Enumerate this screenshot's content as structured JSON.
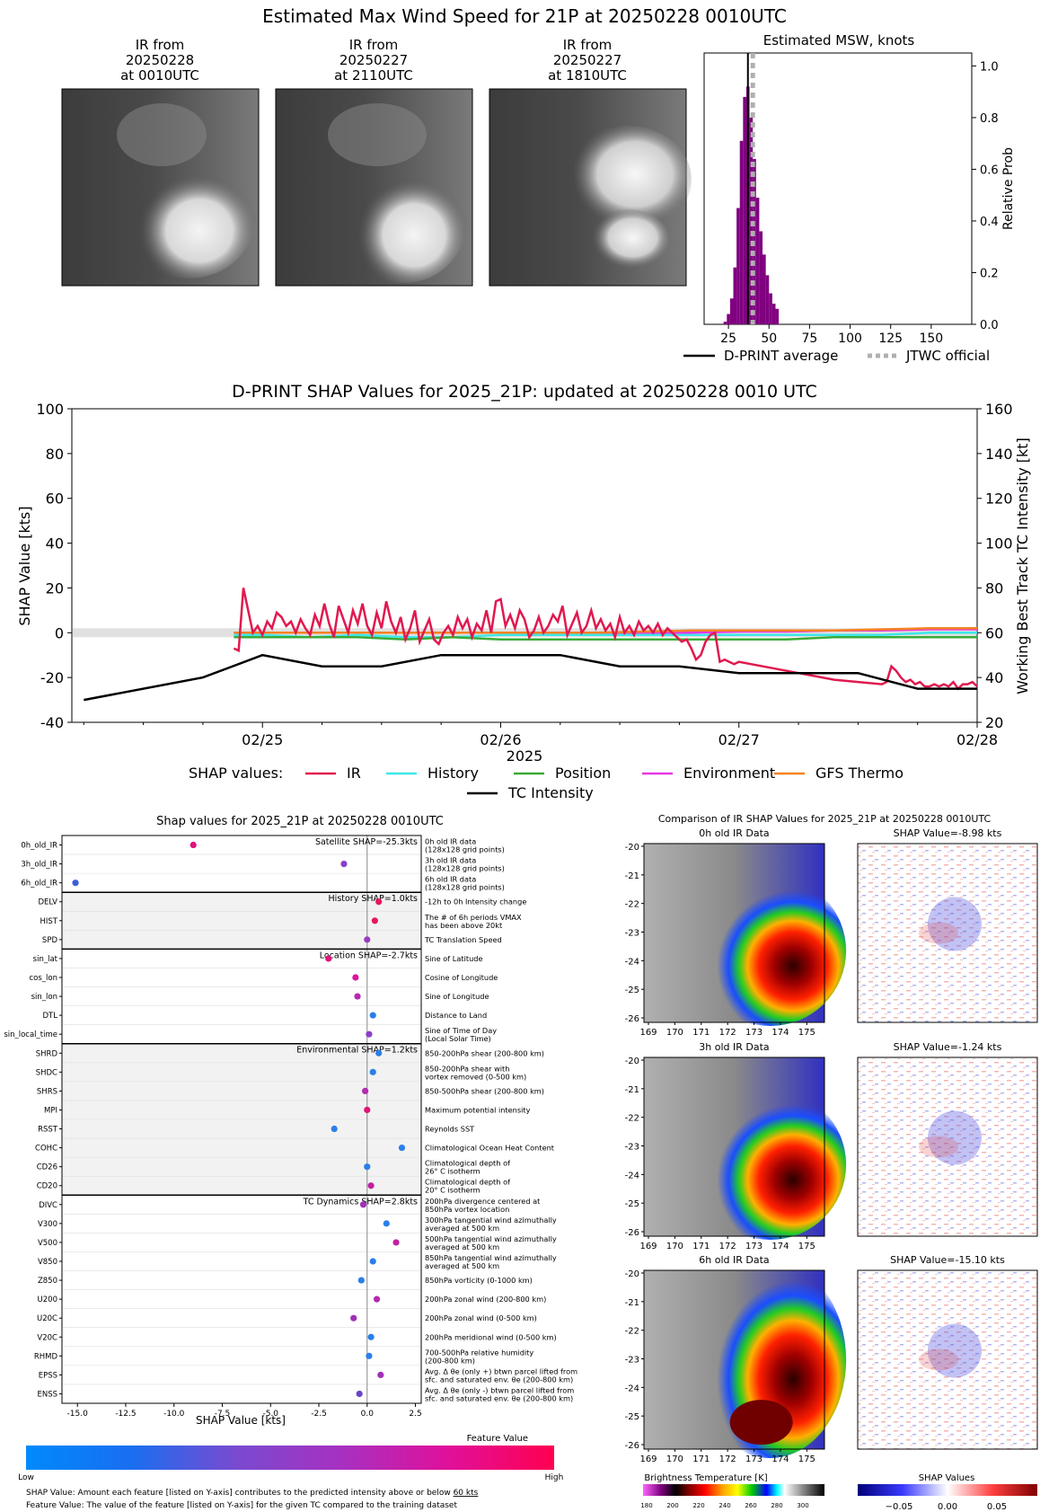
{
  "title": "Estimated Max Wind Speed for 21P at 20250228 0010UTC",
  "ir_thumbs": [
    {
      "line1": "IR from",
      "line2": "20250228",
      "line3": "at 0010UTC"
    },
    {
      "line1": "IR from",
      "line2": "20250227",
      "line3": "at 2110UTC"
    },
    {
      "line1": "IR from",
      "line2": "20250227",
      "line3": "at 1810UTC"
    }
  ],
  "msw": {
    "title": "Estimated MSW, knots",
    "ylabel": "Relative Prob",
    "xticks": [
      "25",
      "50",
      "75",
      "100",
      "125",
      "150"
    ],
    "yticks": [
      "0.0",
      "0.2",
      "0.4",
      "0.6",
      "0.8",
      "1.0"
    ],
    "legend_dprint": "D-PRINT average",
    "legend_jtwc": "JTWC official",
    "bar_color": "#800080",
    "chart_data": {
      "type": "bar",
      "xlim": [
        10,
        175
      ],
      "ylim": [
        0,
        1.05
      ],
      "bin_width": 2,
      "bins": [
        23,
        25,
        27,
        29,
        31,
        33,
        35,
        37,
        39,
        41,
        43,
        45,
        47,
        49,
        51,
        53,
        55
      ],
      "values": [
        0.01,
        0.04,
        0.1,
        0.22,
        0.45,
        0.71,
        0.88,
        0.92,
        0.8,
        0.64,
        0.49,
        0.36,
        0.27,
        0.19,
        0.12,
        0.08,
        0.06
      ],
      "dprint_avg": 37,
      "jtwc_official": 40
    }
  },
  "shap_ts": {
    "title": "D-PRINT SHAP Values for 2025_21P: updated at 20250228 0010 UTC",
    "ylabel": "SHAP Value [kts]",
    "y2label": "Working Best Track TC Intensity [kt]",
    "xlabel": "2025",
    "yticks": [
      "-40",
      "-20",
      "0",
      "20",
      "40",
      "60",
      "80",
      "100"
    ],
    "y2ticks": [
      "20",
      "40",
      "60",
      "80",
      "100",
      "120",
      "140",
      "160"
    ],
    "xticks": [
      "02/25",
      "02/26",
      "02/27",
      "02/28"
    ],
    "legend_title": "SHAP values:",
    "legend": [
      {
        "name": "IR",
        "color": "#e0194f"
      },
      {
        "name": "History",
        "color": "#3de8e8"
      },
      {
        "name": "Position",
        "color": "#3aaa35"
      },
      {
        "name": "Environment",
        "color": "#e637e6"
      },
      {
        "name": "GFS Thermo",
        "color": "#f58223"
      },
      {
        "name": "TC Intensity",
        "color": "#000000"
      }
    ],
    "chart_data": {
      "type": "line",
      "ylim": [
        -40,
        100
      ],
      "y2lim": [
        20,
        160
      ],
      "xlim_days": [
        24.2,
        28.0
      ],
      "intensity": {
        "t": [
          24.25,
          24.75,
          25.0,
          25.25,
          25.5,
          25.75,
          26.0,
          26.25,
          26.5,
          26.75,
          27.0,
          27.25,
          27.5,
          27.75,
          28.0
        ],
        "v": [
          30,
          40,
          50,
          45,
          45,
          50,
          50,
          50,
          45,
          45,
          42,
          42,
          42,
          35,
          35
        ]
      },
      "ir": {
        "t": [
          24.88,
          24.9,
          24.92,
          24.94,
          24.96,
          24.98,
          25.0,
          25.02,
          25.04,
          25.06,
          25.08,
          25.1,
          25.12,
          25.14,
          25.16,
          25.18,
          25.2,
          25.22,
          25.24,
          25.26,
          25.28,
          25.3,
          25.32,
          25.34,
          25.36,
          25.38,
          25.4,
          25.42,
          25.44,
          25.46,
          25.48,
          25.5,
          25.52,
          25.54,
          25.56,
          25.58,
          25.6,
          25.62,
          25.64,
          25.66,
          25.68,
          25.7,
          25.72,
          25.74,
          25.76,
          25.78,
          25.8,
          25.82,
          25.84,
          25.86,
          25.88,
          25.9,
          25.92,
          25.94,
          25.96,
          25.98,
          26.0,
          26.02,
          26.04,
          26.06,
          26.08,
          26.1,
          26.12,
          26.14,
          26.16,
          26.18,
          26.2,
          26.22,
          26.24,
          26.26,
          26.28,
          26.3,
          26.32,
          26.34,
          26.36,
          26.38,
          26.4,
          26.42,
          26.44,
          26.46,
          26.48,
          26.5,
          26.52,
          26.54,
          26.56,
          26.58,
          26.6,
          26.62,
          26.64,
          26.66,
          26.68,
          26.7,
          26.72,
          26.74,
          26.76,
          26.78,
          26.8,
          26.82,
          26.84,
          26.86,
          26.88,
          26.9,
          26.92,
          26.94,
          26.96,
          26.98,
          27.0,
          27.2,
          27.4,
          27.6,
          27.62,
          27.64,
          27.66,
          27.68,
          27.7,
          27.72,
          27.74,
          27.76,
          27.78,
          27.8,
          27.82,
          27.84,
          27.86,
          27.88,
          27.9,
          27.92,
          27.94,
          27.96,
          27.98,
          28.0
        ],
        "v": [
          -7,
          -8,
          20,
          10,
          0,
          3,
          -1,
          5,
          2,
          9,
          7,
          3,
          5,
          0,
          6,
          2,
          -1,
          8,
          3,
          13,
          4,
          -2,
          12,
          6,
          0,
          10,
          4,
          13,
          3,
          -1,
          9,
          2,
          14,
          5,
          0,
          7,
          -3,
          2,
          10,
          -4,
          1,
          6,
          -3,
          -5,
          0,
          3,
          -1,
          7,
          2,
          6,
          -2,
          4,
          1,
          10,
          0,
          14,
          15,
          3,
          8,
          2,
          10,
          6,
          -2,
          1,
          7,
          0,
          3,
          8,
          5,
          12,
          -1,
          4,
          9,
          0,
          3,
          10,
          2,
          6,
          1,
          4,
          -2,
          7,
          0,
          3,
          -1,
          5,
          1,
          3,
          0,
          4,
          -1,
          2,
          0,
          -2,
          -4,
          -3,
          -7,
          -12,
          -10,
          -4,
          -1,
          0,
          -13,
          -12,
          -13,
          -14,
          -13,
          -17,
          -21,
          -23,
          -22,
          -15,
          -17,
          -20,
          -22,
          -21,
          -23,
          -22,
          -24,
          -24,
          -23,
          -24,
          -23,
          -24,
          -22,
          -25,
          -23,
          -23,
          -22,
          -24,
          -25
        ]
      },
      "history": {
        "t": [
          24.88,
          25.0,
          25.2,
          25.4,
          25.6,
          25.8,
          26.0,
          26.2,
          26.4,
          26.6,
          26.8,
          27.0,
          27.2,
          27.4,
          27.6,
          27.8,
          28.0
        ],
        "v": [
          -1,
          -1,
          -2,
          -1,
          -2,
          -2,
          -1,
          -1,
          -1,
          -1,
          -1,
          -1,
          -1,
          -1,
          -1,
          0,
          0
        ]
      },
      "position": {
        "t": [
          24.88,
          25.0,
          25.2,
          25.4,
          25.6,
          25.8,
          26.0,
          26.2,
          26.4,
          26.6,
          26.8,
          27.0,
          27.2,
          27.4,
          27.6,
          27.8,
          28.0
        ],
        "v": [
          -2,
          -2,
          -2,
          -2,
          -3,
          -2,
          -3,
          -3,
          -3,
          -3,
          -3,
          -3,
          -3,
          -2,
          -2,
          -2,
          -2
        ]
      },
      "environment": {
        "t": [
          24.88,
          25.0,
          25.2,
          25.4,
          25.6,
          25.8,
          26.0,
          26.2,
          26.4,
          26.6,
          26.8,
          27.0,
          27.2,
          27.4,
          27.6,
          27.8,
          28.0
        ],
        "v": [
          0,
          0,
          0,
          0,
          0,
          0,
          0,
          0,
          0,
          0,
          0,
          0.5,
          0.5,
          1,
          1,
          1.5,
          1.5
        ]
      },
      "gfs": {
        "t": [
          24.88,
          25.0,
          25.2,
          25.4,
          25.6,
          25.8,
          26.0,
          26.2,
          26.4,
          26.6,
          26.8,
          27.0,
          27.2,
          27.4,
          27.6,
          27.8,
          28.0
        ],
        "v": [
          0,
          0,
          0,
          0,
          0,
          0,
          0,
          0,
          0,
          0.5,
          1,
          1,
          1,
          1,
          1.5,
          2,
          2
        ]
      }
    }
  },
  "shap_features": {
    "title": "Shap values for 2025_21P at 20250228 0010UTC",
    "xlabel": "SHAP Value [kts]",
    "xticks": [
      "-15.0",
      "-12.5",
      "-10.0",
      "-7.5",
      "-5.0",
      "-2.5",
      "0.0",
      "2.5"
    ],
    "groups": [
      {
        "label": "Satellite SHAP=-25.3kts",
        "start": 0,
        "end": 3,
        "shaded": false
      },
      {
        "label": "History SHAP=1.0kts",
        "start": 3,
        "end": 6,
        "shaded": true
      },
      {
        "label": "Location SHAP=-2.7kts",
        "start": 6,
        "end": 11,
        "shaded": false
      },
      {
        "label": "Environmental SHAP=1.2kts",
        "start": 11,
        "end": 19,
        "shaded": true
      },
      {
        "label": "TC Dynamics SHAP=2.8kts",
        "start": 19,
        "end": 30,
        "shaded": false
      }
    ],
    "chart_data": {
      "type": "scatter",
      "xlim": [
        -15.8,
        2.8
      ],
      "features": [
        {
          "name": "0h_old_IR",
          "desc1": "0h old IR data",
          "desc2": "(128x128 grid points)",
          "value": -9.0,
          "color": "#e0147a"
        },
        {
          "name": "3h_old_IR",
          "desc1": "3h old IR data",
          "desc2": "(128x128 grid points)",
          "value": -1.2,
          "color": "#8a3fc8"
        },
        {
          "name": "6h_old_IR",
          "desc1": "6h old IR data",
          "desc2": "(128x128 grid points)",
          "value": -15.1,
          "color": "#3a5ce0"
        },
        {
          "name": "DELV",
          "desc1": "-12h to 0h Intensity change",
          "desc2": "",
          "value": 0.6,
          "color": "#e8175a"
        },
        {
          "name": "HIST",
          "desc1": "The # of 6h periods VMAX",
          "desc2": "has been above 20kt",
          "value": 0.4,
          "color": "#e8175a"
        },
        {
          "name": "SPD",
          "desc1": "TC Translation Speed",
          "desc2": "",
          "value": 0.0,
          "color": "#9a3cc0"
        },
        {
          "name": "sin_lat",
          "desc1": "Sine of Latitude",
          "desc2": "",
          "value": -2.0,
          "color": "#e0147a"
        },
        {
          "name": "cos_lon",
          "desc1": "Cosine of Longitude",
          "desc2": "",
          "value": -0.6,
          "color": "#d815a0"
        },
        {
          "name": "sin_lon",
          "desc1": "Sine of Longitude",
          "desc2": "",
          "value": -0.5,
          "color": "#b42ab0"
        },
        {
          "name": "DTL",
          "desc1": "Distance to Land",
          "desc2": "",
          "value": 0.3,
          "color": "#2a7fe8"
        },
        {
          "name": "sin_local_time",
          "desc1": "Sine of Time of Day",
          "desc2": "(Local Solar Time)",
          "value": 0.1,
          "color": "#8a3fc8"
        },
        {
          "name": "SHRD",
          "desc1": "850-200hPa shear (200-800 km)",
          "desc2": "",
          "value": 0.6,
          "color": "#2a7fe8"
        },
        {
          "name": "SHDC",
          "desc1": "850-200hPa shear with",
          "desc2": "vortex removed (0-500 km)",
          "value": 0.3,
          "color": "#2a7fe8"
        },
        {
          "name": "SHRS",
          "desc1": "850-500hPa shear (200-800 km)",
          "desc2": "",
          "value": -0.1,
          "color": "#b42ab0"
        },
        {
          "name": "MPI",
          "desc1": "Maximum potential intensity",
          "desc2": "",
          "value": 0.0,
          "color": "#e0147a"
        },
        {
          "name": "RSST",
          "desc1": "Reynolds SST",
          "desc2": "",
          "value": -1.7,
          "color": "#2a7fe8"
        },
        {
          "name": "COHC",
          "desc1": "Climatological Ocean Heat Content",
          "desc2": "",
          "value": 1.8,
          "color": "#2a7fe8"
        },
        {
          "name": "CD26",
          "desc1": "Climatological depth of",
          "desc2": "26° C isotherm",
          "value": 0.0,
          "color": "#2a7fe8"
        },
        {
          "name": "CD20",
          "desc1": "Climatological depth of",
          "desc2": "20° C isotherm",
          "value": 0.2,
          "color": "#c020a0"
        },
        {
          "name": "DIVC",
          "desc1": "200hPa divergence centered at",
          "desc2": "850hPa vortex location",
          "value": -0.2,
          "color": "#a030b8"
        },
        {
          "name": "V300",
          "desc1": "300hPa tangential wind azimuthally",
          "desc2": "averaged at 500 km",
          "value": 1.0,
          "color": "#2a7fe8"
        },
        {
          "name": "V500",
          "desc1": "500hPa tangential wind azimuthally",
          "desc2": "averaged at 500 km",
          "value": 1.5,
          "color": "#c020a0"
        },
        {
          "name": "V850",
          "desc1": "850hPa tangential wind azimuthally",
          "desc2": "averaged at 500 km",
          "value": 0.3,
          "color": "#2a7fe8"
        },
        {
          "name": "Z850",
          "desc1": "850hPa vorticity (0-1000 km)",
          "desc2": "",
          "value": -0.3,
          "color": "#2a7fe8"
        },
        {
          "name": "U200",
          "desc1": "200hPa zonal wind (200-800 km)",
          "desc2": "",
          "value": 0.5,
          "color": "#b42ab0"
        },
        {
          "name": "U20C",
          "desc1": "200hPa zonal wind (0-500 km)",
          "desc2": "",
          "value": -0.7,
          "color": "#a030b8"
        },
        {
          "name": "V20C",
          "desc1": "200hPa meridional wind (0-500 km)",
          "desc2": "",
          "value": 0.2,
          "color": "#2a7fe8"
        },
        {
          "name": "RHMD",
          "desc1": "700-500hPa relative humidity",
          "desc2": "(200-800 km)",
          "value": 0.1,
          "color": "#2a7fe8"
        },
        {
          "name": "EPSS",
          "desc1": "Avg. Δ θe (only +) btwn parcel lifted from",
          "desc2": "sfc. and saturated env. θe (200-800 km)",
          "value": 0.7,
          "color": "#a030b8"
        },
        {
          "name": "ENSS",
          "desc1": "Avg. Δ θe (only -) btwn parcel lifted from",
          "desc2": "sfc. and saturated env. θe (200-800 km)",
          "value": -0.4,
          "color": "#6a45c8"
        }
      ]
    }
  },
  "colorbar": {
    "title": "Feature Value",
    "low": "Low",
    "high": "High",
    "note1": "SHAP Value: Amount each feature [listed on Y-axis] contributes to the predicted intensity above or below ",
    "note1_u": "60 kts",
    "note2": "Feature Value: The value of the feature [listed on Y-axis] for the given TC compared to the training dataset"
  },
  "comparison": {
    "title": "Comparison of IR SHAP Values for 2025_21P at 20250228 0010UTC",
    "rows": [
      {
        "left": "0h old IR Data",
        "right": "SHAP Value=-8.98 kts"
      },
      {
        "left": "3h old IR Data",
        "right": "SHAP Value=-1.24 kts"
      },
      {
        "left": "6h old IR Data",
        "right": "SHAP Value=-15.10 kts"
      }
    ],
    "xticks": [
      "169",
      "170",
      "171",
      "172",
      "173",
      "174",
      "175"
    ],
    "yticks": [
      "-20",
      "-21",
      "-22",
      "-23",
      "-24",
      "-25",
      "-26"
    ],
    "bt_label": "Brightness Temperature [K]",
    "bt_ticks": [
      "180",
      "200",
      "220",
      "240",
      "260",
      "280",
      "300"
    ],
    "shap_label": "SHAP Values",
    "shap_ticks": [
      "−0.05",
      "0.00",
      "0.05"
    ]
  }
}
